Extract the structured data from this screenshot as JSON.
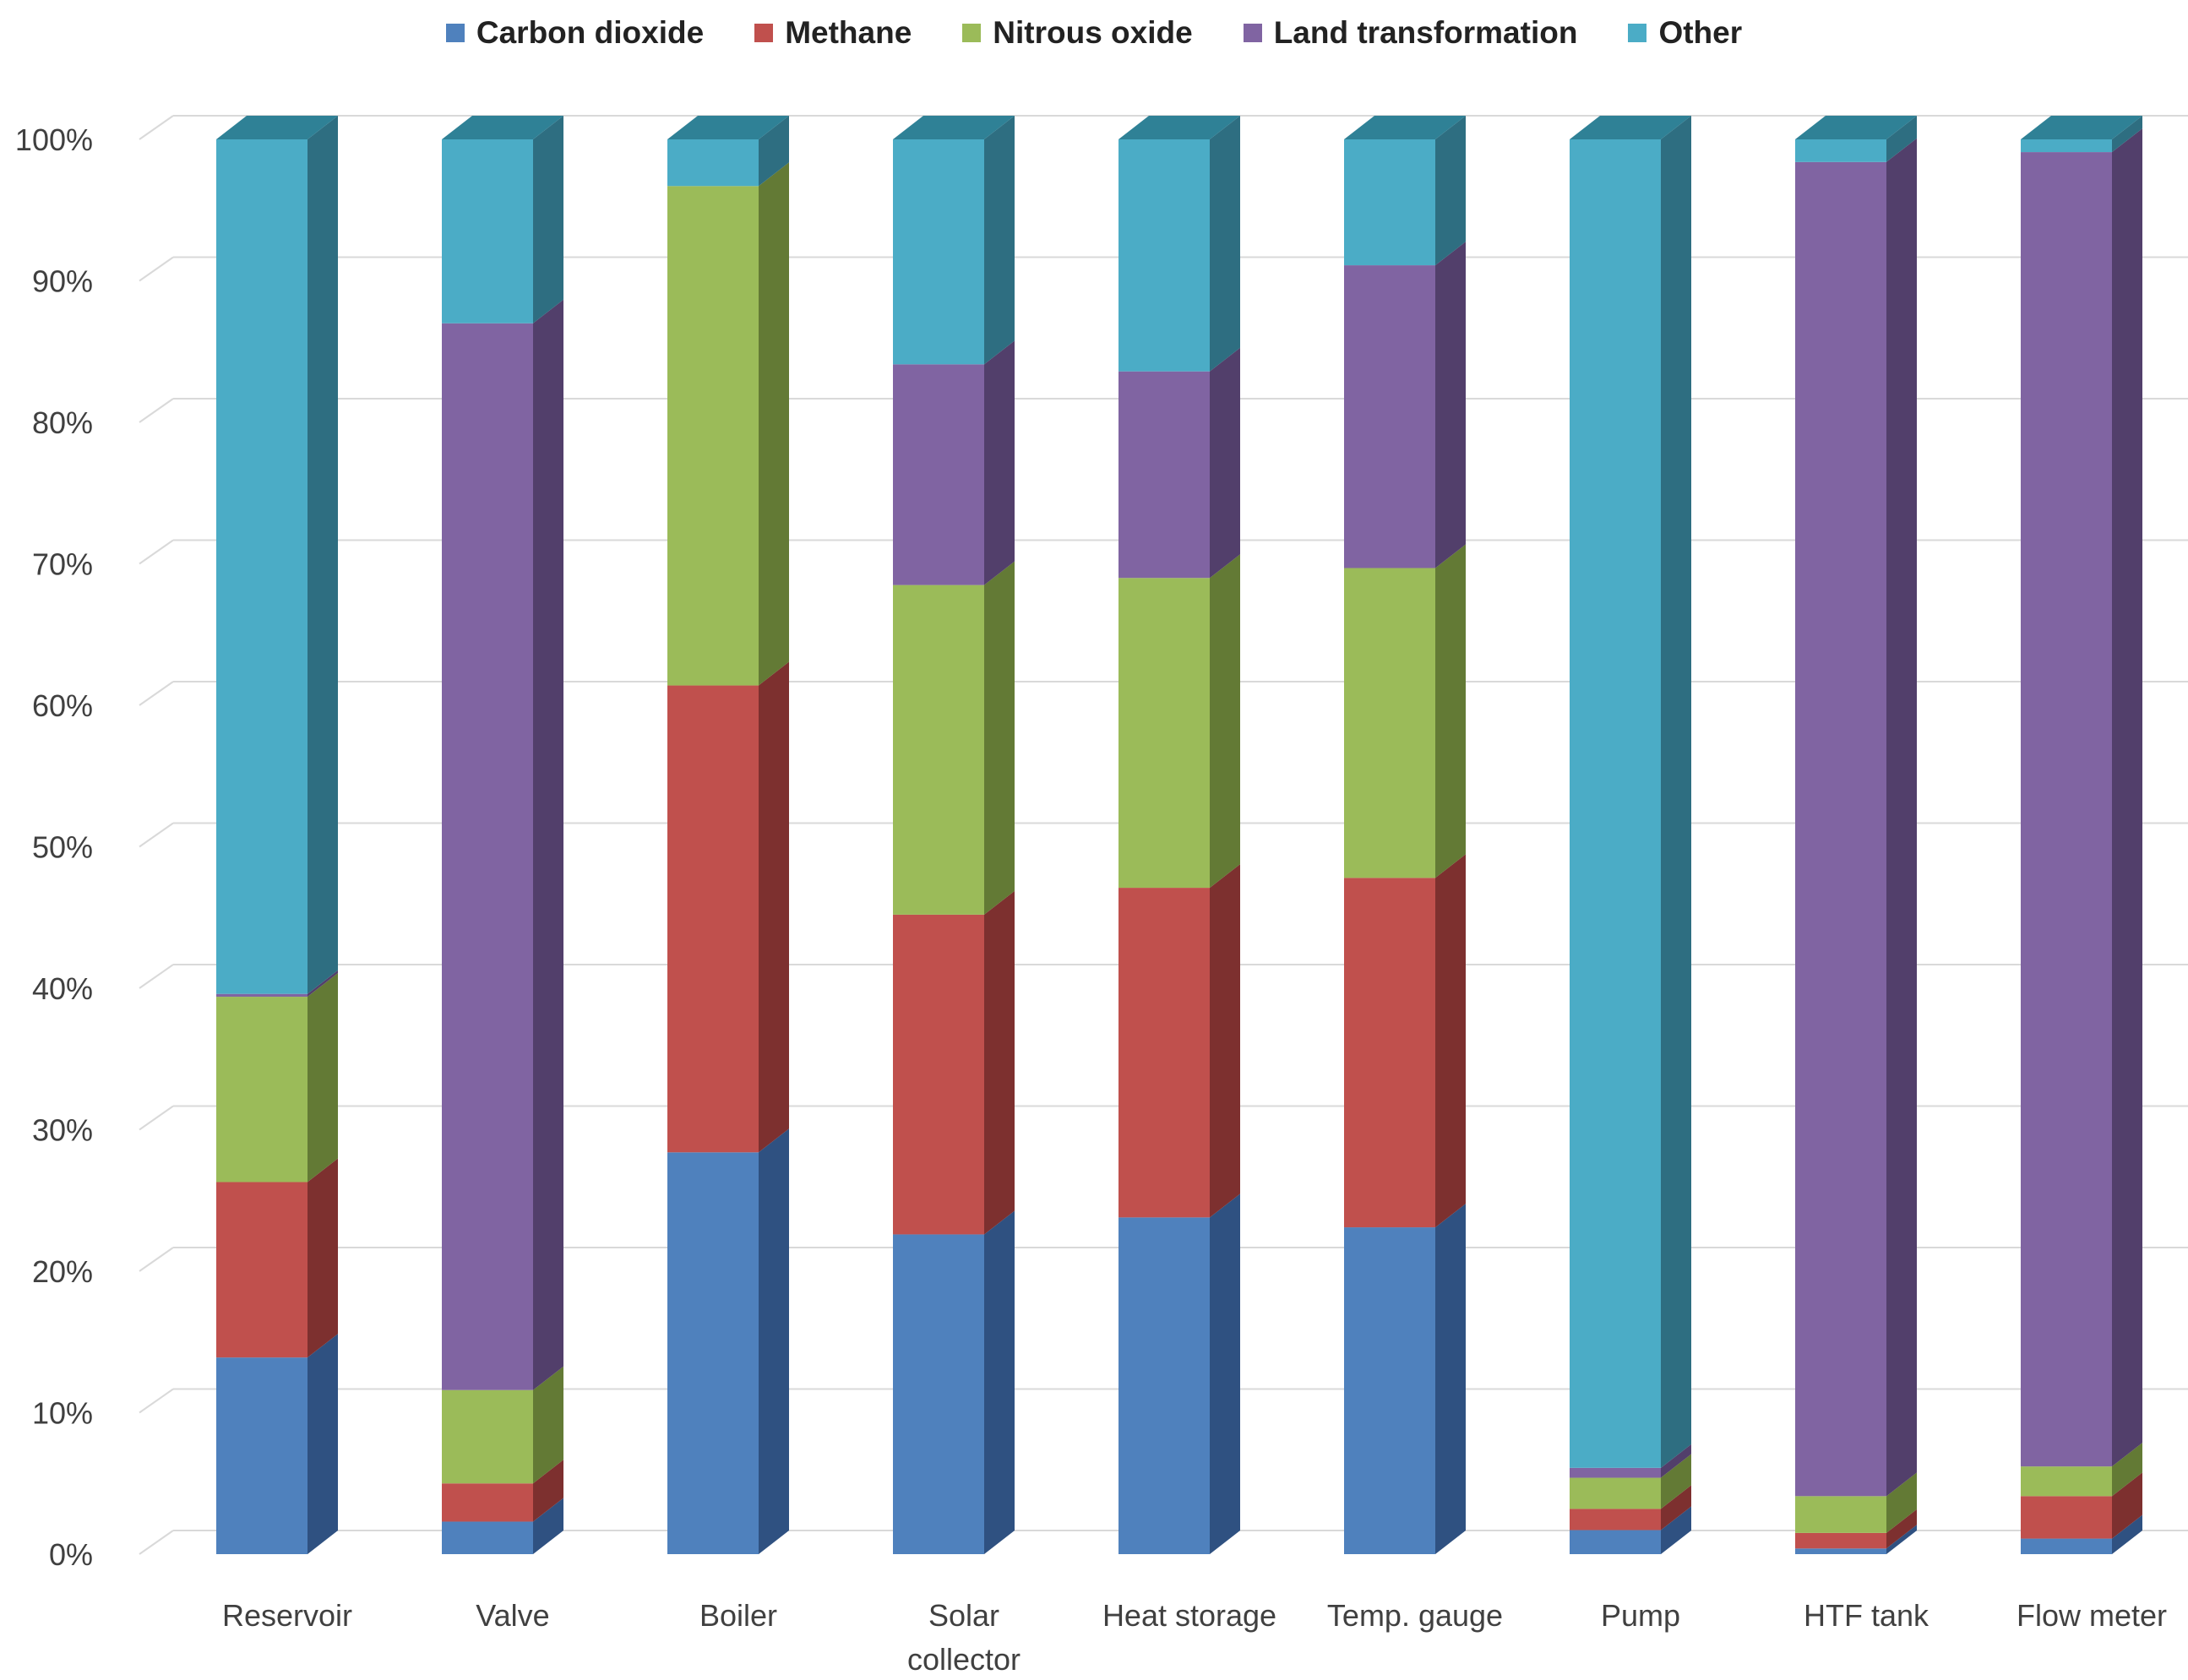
{
  "chart_data": {
    "type": "bar",
    "stacked": true,
    "normalized": true,
    "three_d": true,
    "title": "",
    "xlabel": "",
    "ylabel": "",
    "ylim": [
      0,
      100
    ],
    "yticks": [
      "0%",
      "10%",
      "20%",
      "30%",
      "40%",
      "50%",
      "60%",
      "70%",
      "80%",
      "90%",
      "100%"
    ],
    "legend_position": "top",
    "grid": true,
    "categories": [
      [
        "Reservoir"
      ],
      [
        "Valve"
      ],
      [
        "Boiler"
      ],
      [
        "Solar",
        "collector"
      ],
      [
        "Heat storage"
      ],
      [
        "Temp. gauge"
      ],
      [
        "Pump"
      ],
      [
        "HTF tank"
      ],
      [
        "Flow meter"
      ]
    ],
    "series": [
      {
        "name": "Carbon dioxide",
        "color": "#4f81bd",
        "side": "#2f5181",
        "top": "#6a95cc",
        "values": [
          13.9,
          2.3,
          28.4,
          22.6,
          23.8,
          23.1,
          1.7,
          0.4,
          1.1
        ]
      },
      {
        "name": "Methane",
        "color": "#c0504d",
        "side": "#7d302f",
        "top": "#d06a67",
        "values": [
          12.4,
          2.7,
          33.0,
          22.6,
          23.3,
          24.7,
          1.5,
          1.1,
          3.0
        ]
      },
      {
        "name": "Nitrous oxide",
        "color": "#9bbb59",
        "side": "#637a35",
        "top": "#b0cc76",
        "values": [
          13.1,
          6.6,
          35.3,
          23.3,
          21.9,
          21.9,
          2.2,
          2.6,
          2.1
        ]
      },
      {
        "name": "Land transformation",
        "color": "#8064a2",
        "side": "#523f6b",
        "top": "#9a80bb",
        "values": [
          0.2,
          75.4,
          0.0,
          15.6,
          14.6,
          21.4,
          0.7,
          94.3,
          92.9
        ]
      },
      {
        "name": "Other",
        "color": "#4bacc6",
        "side": "#2e6e81",
        "top": "#2f8196",
        "values": [
          60.4,
          13.0,
          3.3,
          15.9,
          16.4,
          8.9,
          93.9,
          1.6,
          0.9
        ]
      }
    ]
  }
}
